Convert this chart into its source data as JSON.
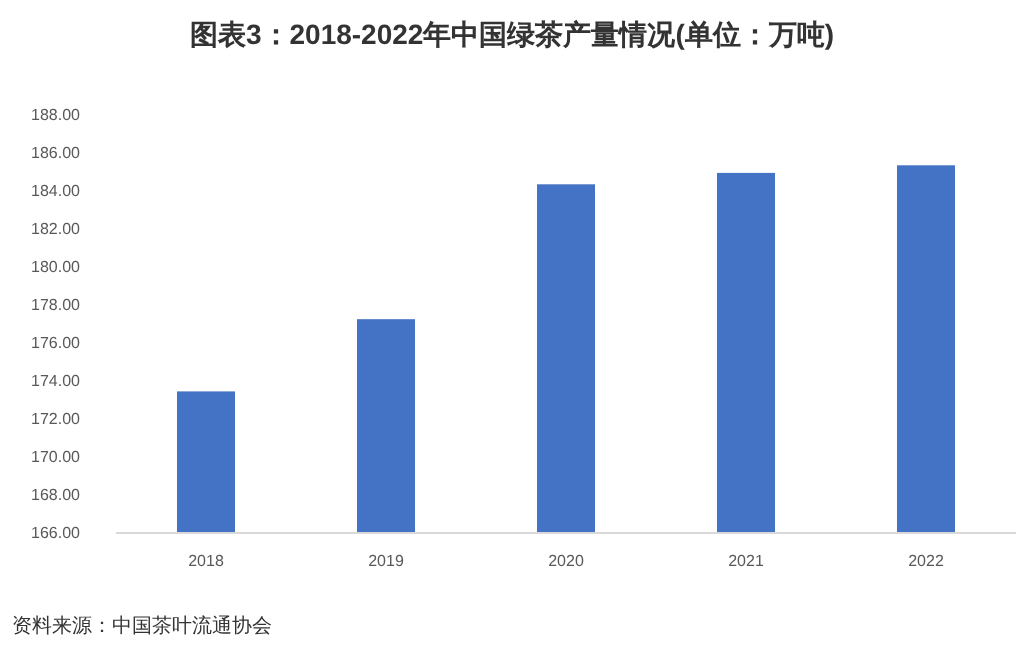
{
  "chart_data": {
    "type": "bar",
    "title": "图表3：2018-2022年中国绿茶产量情况(单位：万吨)",
    "categories": [
      "2018",
      "2019",
      "2020",
      "2021",
      "2022"
    ],
    "values": [
      173.4,
      177.2,
      184.3,
      184.9,
      185.3
    ],
    "color": "#4472c4",
    "ylim": [
      166,
      188
    ],
    "yticks": [
      {
        "value": 166,
        "label": "166.00"
      },
      {
        "value": 168,
        "label": "168.00"
      },
      {
        "value": 170,
        "label": "170.00"
      },
      {
        "value": 172,
        "label": "172.00"
      },
      {
        "value": 174,
        "label": "174.00"
      },
      {
        "value": 176,
        "label": "176.00"
      },
      {
        "value": 178,
        "label": "178.00"
      },
      {
        "value": 180,
        "label": "180.00"
      },
      {
        "value": 182,
        "label": "182.00"
      },
      {
        "value": 184,
        "label": "184.00"
      },
      {
        "value": 186,
        "label": "186.00"
      },
      {
        "value": 188,
        "label": "188.00"
      }
    ],
    "grid": false,
    "legend": false,
    "annotations": [
      "资料来源：中国茶叶流通协会"
    ]
  }
}
